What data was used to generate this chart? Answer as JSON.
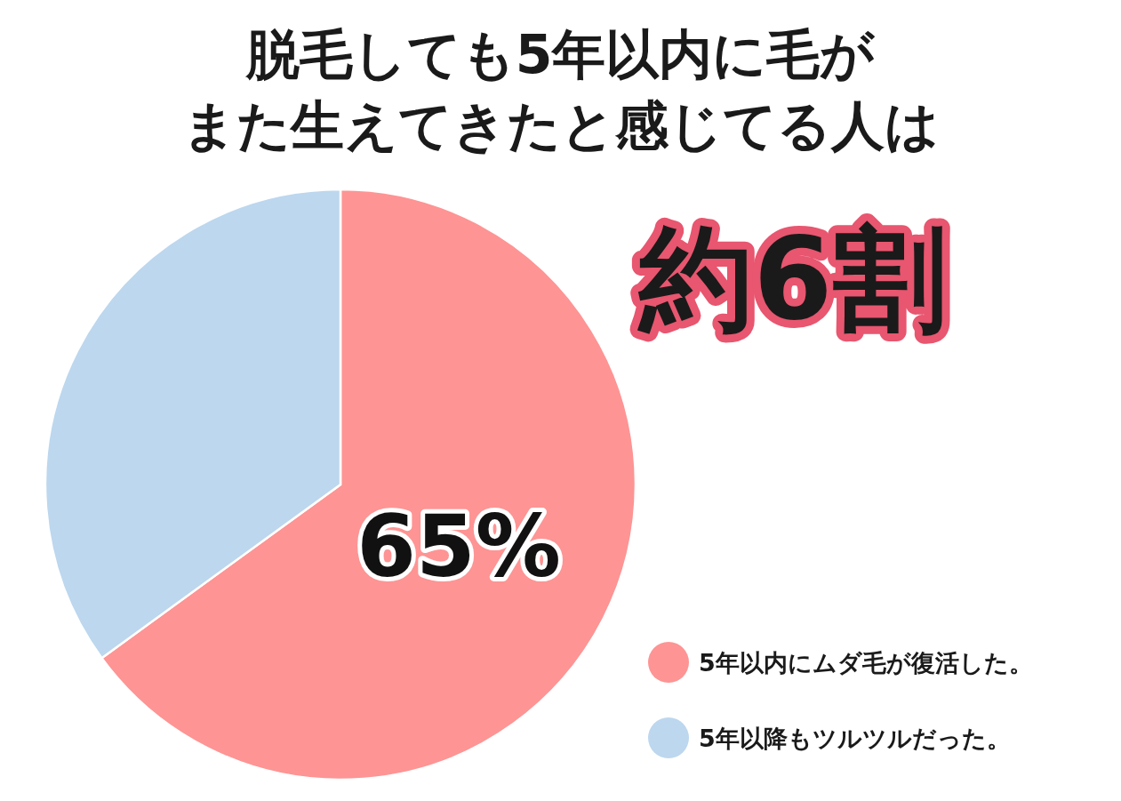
{
  "chart_data": {
    "type": "pie",
    "title": "脱毛しても5年以内に毛が",
    "subtitle": "また生えてきたと感じてる人は",
    "categories": [
      "5年以内にムダ毛が復活した。",
      "5年以降もツルツルだった。"
    ],
    "values": [
      65,
      35
    ],
    "colors": [
      "#fe9494",
      "#bcd7ee"
    ],
    "value_labels": [
      "65%",
      null
    ],
    "annotations": [
      "約6割"
    ],
    "legend": "bottom right"
  }
}
